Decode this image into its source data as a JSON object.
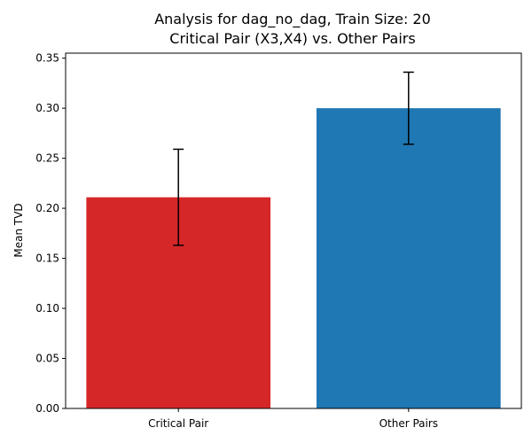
{
  "chart_data": {
    "type": "bar",
    "title_line1": "Analysis for dag_no_dag, Train Size: 20",
    "title_line2": "Critical Pair (X3,X4) vs. Other Pairs",
    "xlabel": "",
    "ylabel": "Mean TVD",
    "categories": [
      "Critical Pair",
      "Other Pairs"
    ],
    "values": [
      0.211,
      0.3
    ],
    "error_low": [
      0.163,
      0.264
    ],
    "error_high": [
      0.259,
      0.336
    ],
    "colors": [
      "#d62728",
      "#1f77b4"
    ],
    "ylim": [
      0,
      0.355
    ],
    "yticks": [
      0.0,
      0.05,
      0.1,
      0.15,
      0.2,
      0.25,
      0.3,
      0.35
    ],
    "ytick_labels": [
      "0.00",
      "0.05",
      "0.10",
      "0.15",
      "0.20",
      "0.25",
      "0.30",
      "0.35"
    ],
    "grid": false
  }
}
